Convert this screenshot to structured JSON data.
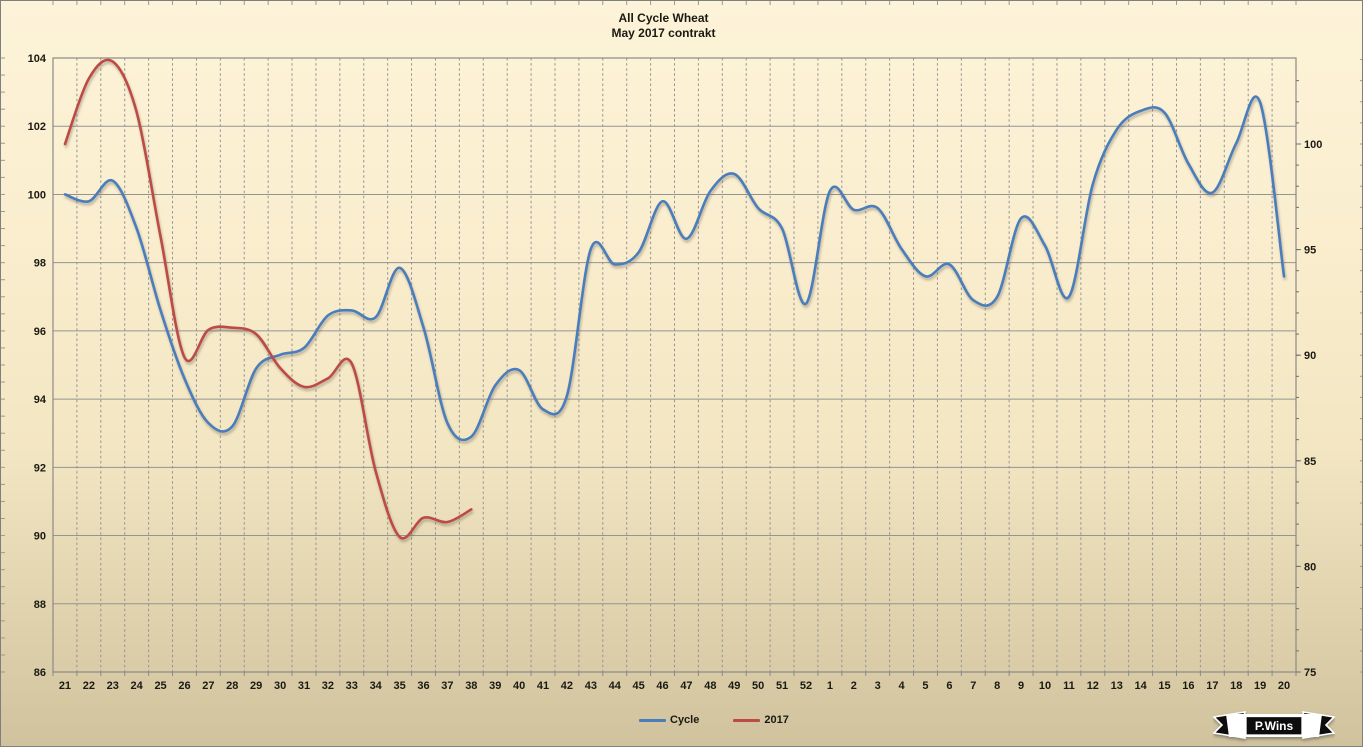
{
  "title": {
    "line1": "All Cycle Wheat",
    "line2": "May 2017 contrakt"
  },
  "legend": [
    {
      "label": "Cycle",
      "color": "#4a7dbb"
    },
    {
      "label": "2017",
      "color": "#bd4b45"
    }
  ],
  "watermark": {
    "text": "P.Wins"
  },
  "axes": {
    "left": {
      "ticks": [
        86,
        88,
        90,
        92,
        94,
        96,
        98,
        100,
        102,
        104
      ]
    },
    "right": {
      "ticks": [
        75,
        80,
        85,
        90,
        95,
        100
      ]
    },
    "x": {
      "labels": [
        "21",
        "22",
        "23",
        "24",
        "25",
        "26",
        "27",
        "28",
        "29",
        "30",
        "31",
        "32",
        "33",
        "34",
        "35",
        "36",
        "37",
        "38",
        "39",
        "40",
        "41",
        "42",
        "43",
        "44",
        "45",
        "46",
        "47",
        "48",
        "49",
        "50",
        "51",
        "52",
        "1",
        "2",
        "3",
        "4",
        "5",
        "6",
        "7",
        "8",
        "9",
        "10",
        "11",
        "12",
        "13",
        "14",
        "15",
        "16",
        "17",
        "18",
        "19",
        "20"
      ]
    }
  },
  "colors": {
    "grid": "#949494",
    "border": "#8a8a8a",
    "text": "#1a1a12",
    "edge_tick": "#a39a84"
  },
  "chart_data": {
    "type": "line",
    "title": "All Cycle Wheat — May 2017 contrakt",
    "categories": [
      "21",
      "22",
      "23",
      "24",
      "25",
      "26",
      "27",
      "28",
      "29",
      "30",
      "31",
      "32",
      "33",
      "34",
      "35",
      "36",
      "37",
      "38",
      "39",
      "40",
      "41",
      "42",
      "43",
      "44",
      "45",
      "46",
      "47",
      "48",
      "49",
      "50",
      "51",
      "52",
      "1",
      "2",
      "3",
      "4",
      "5",
      "6",
      "7",
      "8",
      "9",
      "10",
      "11",
      "12",
      "13",
      "14",
      "15",
      "16",
      "17",
      "18",
      "19",
      "20"
    ],
    "x_note": "calendar week numbers, wrapping from week 52 to week 1",
    "grid": true,
    "legend_position": "bottom",
    "left_ylim": [
      86,
      104
    ],
    "right_ylim": [
      75,
      104
    ],
    "series": [
      {
        "name": "Cycle",
        "axis": "left",
        "color": "#4a7dbb",
        "values": [
          100.0,
          99.8,
          100.4,
          99.0,
          96.6,
          94.6,
          93.3,
          93.2,
          94.9,
          95.3,
          95.5,
          96.45,
          96.6,
          96.4,
          97.85,
          96.1,
          93.3,
          92.9,
          94.4,
          94.85,
          93.7,
          94.1,
          98.4,
          97.95,
          98.3,
          99.8,
          98.7,
          100.1,
          100.6,
          99.6,
          99.0,
          96.8,
          100.1,
          99.55,
          99.6,
          98.4,
          97.6,
          97.95,
          96.9,
          97.0,
          99.3,
          98.5,
          97.0,
          100.3,
          101.9,
          102.45,
          102.4,
          100.9,
          100.05,
          101.5,
          102.7,
          97.6
        ]
      },
      {
        "name": "2017",
        "axis": "right",
        "color": "#bd4b45",
        "values": [
          100.0,
          103.1,
          103.9,
          101.5,
          95.6,
          89.9,
          91.2,
          91.3,
          91.0,
          89.4,
          88.5,
          88.9,
          89.6,
          84.5,
          81.4,
          82.3,
          82.1,
          82.7,
          null,
          null,
          null,
          null,
          null,
          null,
          null,
          null,
          null,
          null,
          null,
          null,
          null,
          null,
          null,
          null,
          null,
          null,
          null,
          null,
          null,
          null,
          null,
          null,
          null,
          null,
          null,
          null,
          null,
          null,
          null,
          null,
          null,
          null
        ]
      }
    ]
  }
}
